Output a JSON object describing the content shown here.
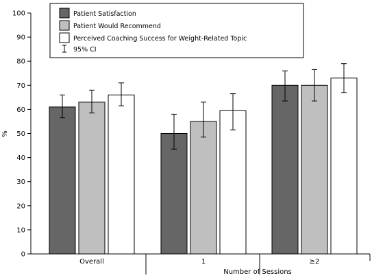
{
  "chart_data": {
    "type": "bar",
    "categories": [
      "Overall",
      "1",
      "≥2"
    ],
    "xlabel": "Number of Sessions",
    "ylabel": "%",
    "ylim": [
      0,
      100
    ],
    "yticks": [
      0,
      10,
      20,
      30,
      40,
      50,
      60,
      70,
      80,
      90,
      100
    ],
    "grid": false,
    "legend_position": "top-left",
    "ci_label": "95% CI",
    "series": [
      {
        "name": "Patient Satisfaction",
        "color": "#666666",
        "values": [
          61,
          50,
          70
        ],
        "ci_low": [
          56.5,
          43.5,
          63.5
        ],
        "ci_high": [
          66,
          58,
          76
        ]
      },
      {
        "name": "Patient Would Recommend",
        "color": "#bfbfbf",
        "values": [
          63,
          55,
          70
        ],
        "ci_low": [
          58.5,
          48.5,
          63.5
        ],
        "ci_high": [
          68,
          63,
          76.5
        ]
      },
      {
        "name": "Perceived Coaching Success for Weight-Related Topic",
        "color": "#ffffff",
        "values": [
          66,
          59.5,
          73
        ],
        "ci_low": [
          61.5,
          51.5,
          67
        ],
        "ci_high": [
          71,
          66.5,
          79
        ]
      }
    ]
  }
}
